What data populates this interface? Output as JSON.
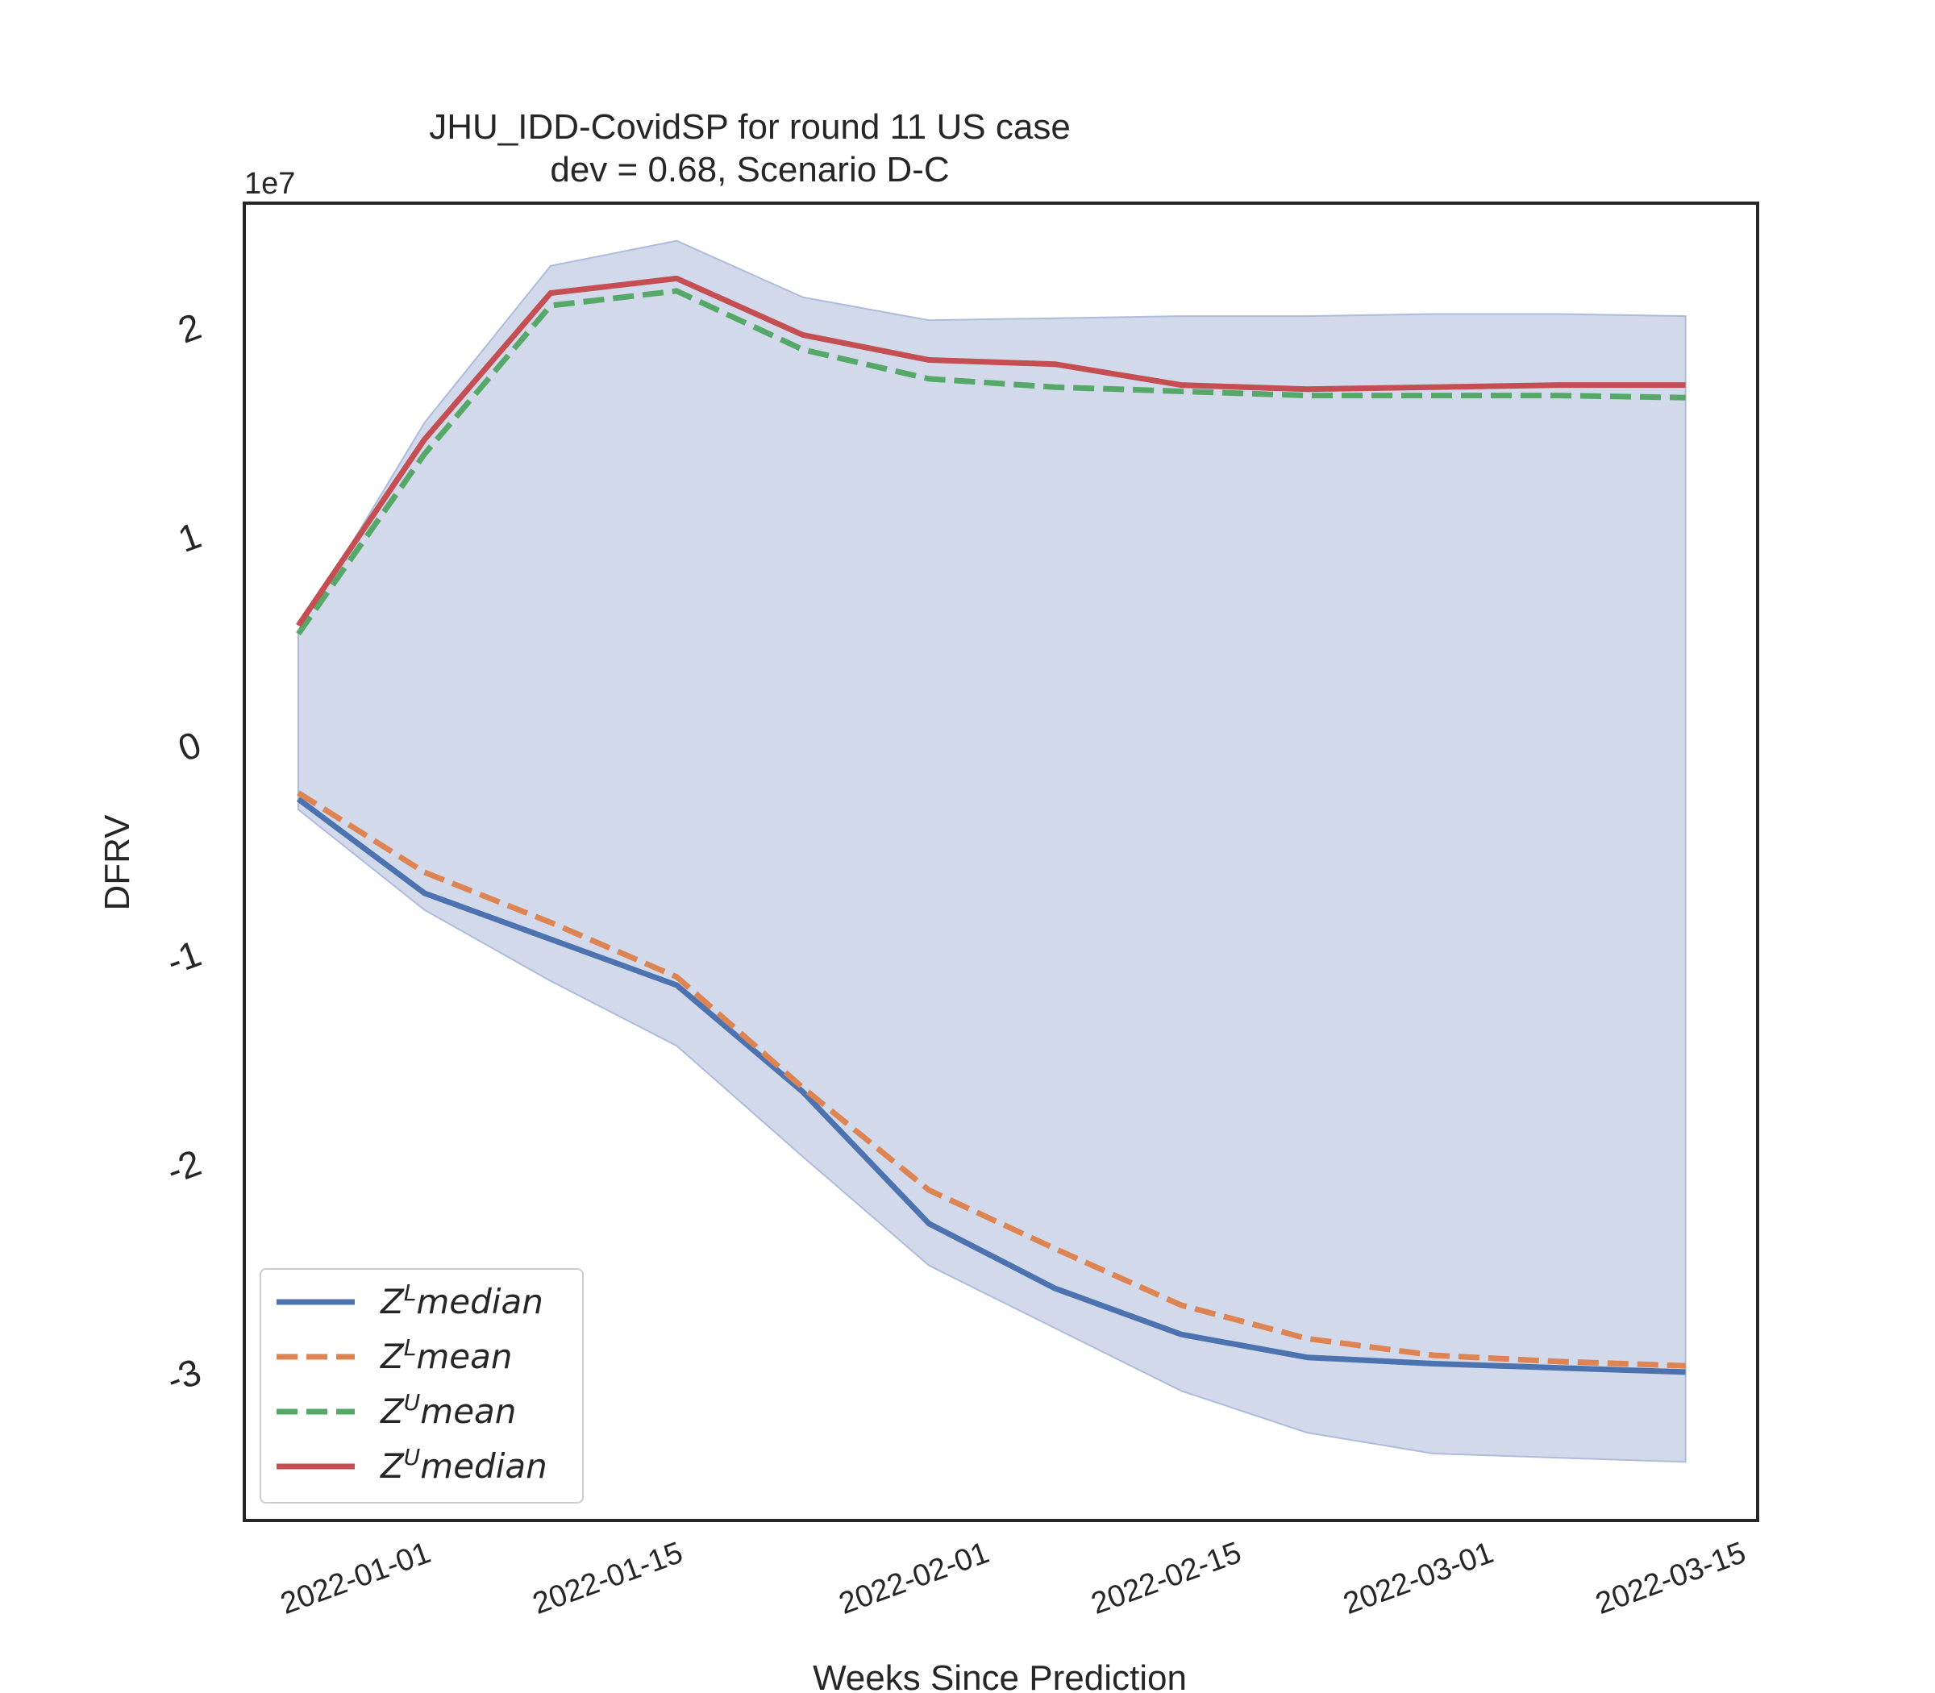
{
  "chart_data": {
    "type": "line",
    "title": "JHU_IDD-CovidSP for round 11 US case",
    "subtitle": "dev = 0.68, Scenario D-C",
    "xlabel": "Weeks Since Prediction",
    "ylabel": "DFRV",
    "y_offset_label": "1e7",
    "x": [
      "2021-12-25",
      "2022-01-01",
      "2022-01-08",
      "2022-01-15",
      "2022-01-22",
      "2022-01-29",
      "2022-02-05",
      "2022-02-12",
      "2022-02-19",
      "2022-02-26",
      "2022-03-05",
      "2022-03-12"
    ],
    "x_tick_labels": [
      "2022-01-01",
      "2022-01-15",
      "2022-02-01",
      "2022-02-15",
      "2022-03-01",
      "2022-03-15"
    ],
    "y_tick_labels": [
      "-3",
      "-2",
      "-1",
      "0",
      "1",
      "2"
    ],
    "y_tick_values": [
      -3,
      -2,
      -1,
      0,
      1,
      2
    ],
    "xlim": [
      "2021-12-22",
      "2022-03-16"
    ],
    "ylim": [
      -3.7,
      2.6
    ],
    "grid": false,
    "legend_position": "lower-left",
    "band": {
      "color": "#ccd5e8",
      "lower": [
        -0.3,
        -0.78,
        -1.12,
        -1.43,
        -1.96,
        -2.48,
        -2.78,
        -3.08,
        -3.28,
        -3.38,
        -3.4,
        -3.42
      ],
      "upper": [
        0.55,
        1.55,
        2.3,
        2.42,
        2.15,
        2.04,
        2.05,
        2.06,
        2.06,
        2.07,
        2.07,
        2.06
      ]
    },
    "series": [
      {
        "name": "Z^L median",
        "label_base": "Z",
        "label_sup": "L",
        "label_rest": "median",
        "color": "#4c72b0",
        "dashed": false,
        "values": [
          -0.25,
          -0.7,
          -0.92,
          -1.14,
          -1.65,
          -2.28,
          -2.59,
          -2.81,
          -2.92,
          -2.95,
          -2.97,
          -2.99
        ]
      },
      {
        "name": "Z^L mean",
        "label_base": "Z",
        "label_sup": "L",
        "label_rest": "mean",
        "color": "#dd8452",
        "dashed": true,
        "values": [
          -0.22,
          -0.6,
          -0.84,
          -1.1,
          -1.63,
          -2.12,
          -2.4,
          -2.67,
          -2.83,
          -2.91,
          -2.94,
          -2.96
        ]
      },
      {
        "name": "Z^U mean",
        "label_base": "Z",
        "label_sup": "U",
        "label_rest": "mean",
        "color": "#55a868",
        "dashed": true,
        "values": [
          0.54,
          1.4,
          2.11,
          2.18,
          1.9,
          1.76,
          1.72,
          1.7,
          1.68,
          1.68,
          1.68,
          1.67
        ]
      },
      {
        "name": "Z^U median",
        "label_base": "Z",
        "label_sup": "U",
        "label_rest": "median",
        "color": "#c44e52",
        "dashed": false,
        "values": [
          0.58,
          1.47,
          2.17,
          2.24,
          1.97,
          1.85,
          1.83,
          1.73,
          1.71,
          1.72,
          1.73,
          1.73
        ]
      }
    ]
  }
}
